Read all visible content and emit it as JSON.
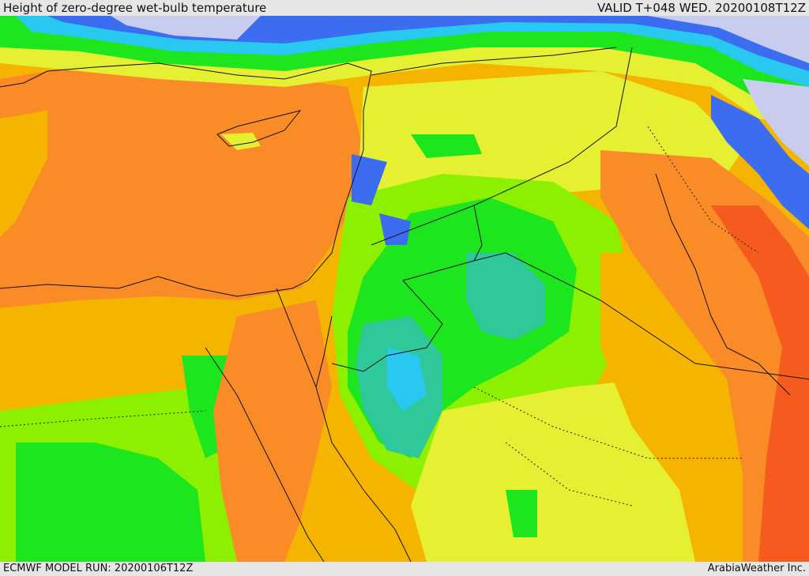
{
  "header": {
    "title": "Height of zero-degree wet-bulb temperature",
    "valid": "VALID T+048 WED. 20200108T12Z"
  },
  "footer": {
    "model_run": "ECMWF MODEL RUN: 20200106T12Z",
    "credit": "ArabiaWeather Inc."
  },
  "palette": {
    "lavender": "#c8cdf0",
    "blue": "#3c6cf0",
    "cyan": "#28c8f0",
    "teal": "#2ec89a",
    "green": "#1ee61e",
    "lime": "#8cf000",
    "yellow": "#e6f032",
    "amber": "#f5b400",
    "orange": "#fa8c28",
    "red": "#f55a1e"
  }
}
